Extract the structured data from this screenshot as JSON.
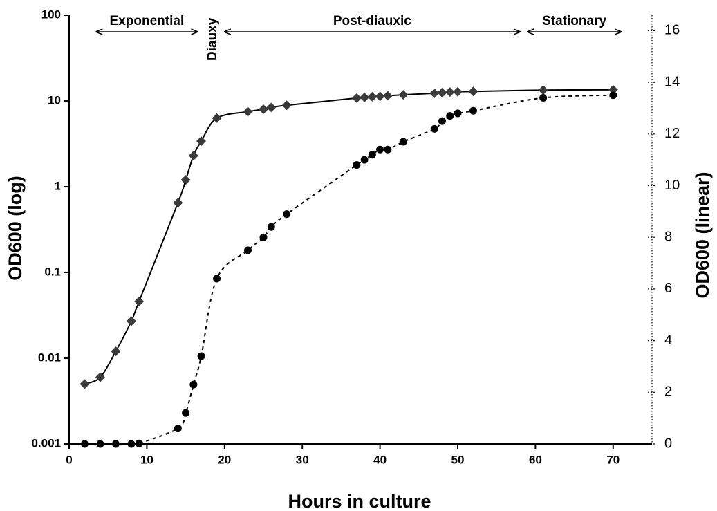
{
  "chart_data": {
    "type": "line",
    "x_label": "Hours in culture",
    "y_label": "OD600 (log)",
    "y2_label": "OD600 (linear)",
    "xlim": [
      0,
      75
    ],
    "xticks": [
      0,
      10,
      20,
      30,
      40,
      50,
      60,
      70
    ],
    "ylim": [
      0.001,
      100
    ],
    "yticks": [
      0.001,
      0.01,
      0.1,
      1,
      10,
      100
    ],
    "log_y": true,
    "y2lim": [
      0,
      16.6
    ],
    "y2ticks": [
      0,
      2,
      4,
      6,
      8,
      10,
      12,
      14,
      16
    ],
    "x": [
      2,
      4,
      6,
      8,
      9,
      14,
      15,
      16,
      17,
      19,
      23,
      25,
      26,
      28,
      37,
      38,
      39,
      40,
      41,
      43,
      47,
      48,
      49,
      50,
      52,
      61,
      70
    ],
    "series": [
      {
        "color": "#3a3a3a",
        "marker": "diamond",
        "line": "solid",
        "values": [
          0.005,
          0.006,
          0.012,
          0.027,
          0.046,
          0.65,
          1.2,
          2.3,
          3.4,
          6.3,
          7.5,
          8.0,
          8.4,
          8.9,
          10.8,
          11.0,
          11.2,
          11.3,
          11.5,
          11.8,
          12.3,
          12.5,
          12.7,
          12.8,
          12.9,
          13.4,
          13.5
        ]
      },
      {
        "color": "#000000",
        "marker": "circle",
        "line": "dashed",
        "axis": "y2",
        "values": [
          0,
          0,
          0,
          0,
          0.02,
          0.6,
          1.2,
          2.3,
          3.4,
          6.4,
          7.5,
          8.0,
          8.4,
          8.9,
          10.8,
          11.0,
          11.2,
          11.4,
          11.4,
          11.7,
          12.2,
          12.5,
          12.7,
          12.8,
          12.9,
          13.4,
          13.5
        ]
      }
    ],
    "phases": [
      {
        "label": "Exponential",
        "start": 3.5,
        "end": 16.5
      },
      {
        "label": "Post-diauxic",
        "start": 20,
        "end": 58
      },
      {
        "label": "Stationary",
        "start": 59,
        "end": 71
      }
    ],
    "diauxy": {
      "label": "Diauxy",
      "x": 18.5
    }
  }
}
